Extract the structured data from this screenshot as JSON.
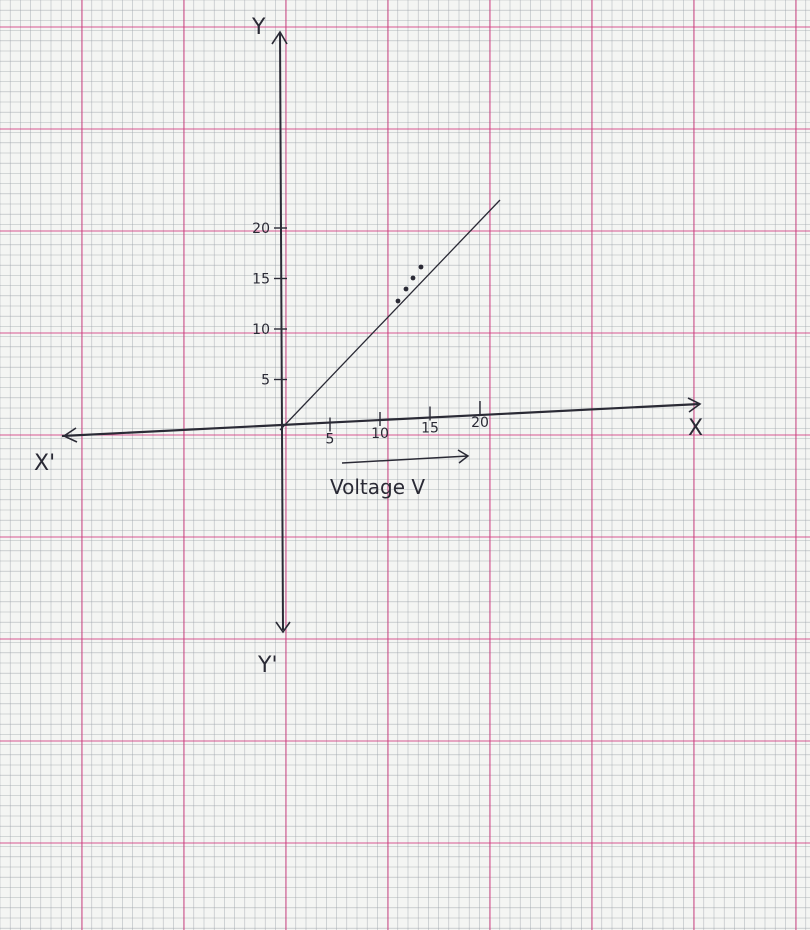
{
  "colors": {
    "paper": "#f4f5f3",
    "grid_minor": "#9aa0a8",
    "grid_major": "#d2327a",
    "ink": "#2a2a35"
  },
  "chart_data": {
    "type": "line",
    "grid": true,
    "axis_labels": {
      "x_pos": "X",
      "x_neg": "X'",
      "y_pos": "Y",
      "y_neg": "Y'"
    },
    "xlabel": "Voltage V",
    "ylabel": "",
    "x_ticks": [
      5,
      10,
      15,
      20
    ],
    "x_tick_labels": [
      "5",
      "10",
      "15",
      "20"
    ],
    "y_ticks": [
      5,
      10,
      15,
      20
    ],
    "y_tick_labels": [
      "5",
      "10",
      "15",
      "20"
    ],
    "xlim": [
      -21,
      21
    ],
    "ylim": [
      -18,
      38
    ],
    "series": [
      {
        "line": {
          "x": [
            0,
            22
          ],
          "y": [
            0,
            23
          ]
        },
        "points": {
          "x": [
            11.8,
            12.6,
            13.3,
            14.1
          ],
          "y": [
            12.9,
            14.1,
            15.2,
            16.3
          ]
        }
      }
    ]
  }
}
